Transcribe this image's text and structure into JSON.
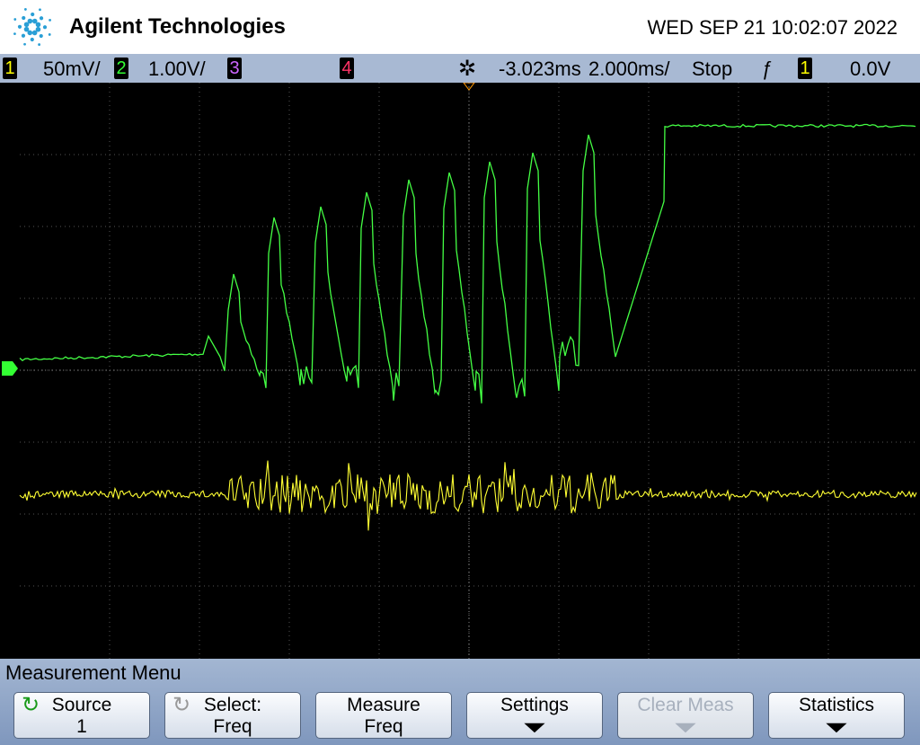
{
  "header": {
    "brand": "Agilent Technologies",
    "datetime": "WED SEP 21 10:02:07 2022"
  },
  "status_bar": {
    "ch1_label": "1",
    "ch1_scale": "50mV/",
    "ch2_label": "2",
    "ch2_scale": "1.00V/",
    "ch3_label": "3",
    "ch4_label": "4",
    "delay": "-3.023ms",
    "timebase": "2.000ms/",
    "run_state": "Stop",
    "trigger_source": "1",
    "trigger_level": "0.0V"
  },
  "menu": {
    "title": "Measurement Menu",
    "buttons": [
      [
        "Source",
        "1"
      ],
      [
        "Select:",
        "Freq"
      ],
      [
        "Measure",
        "Freq"
      ],
      [
        "Settings"
      ],
      [
        "Clear Meas"
      ],
      [
        "Statistics"
      ]
    ]
  }
}
